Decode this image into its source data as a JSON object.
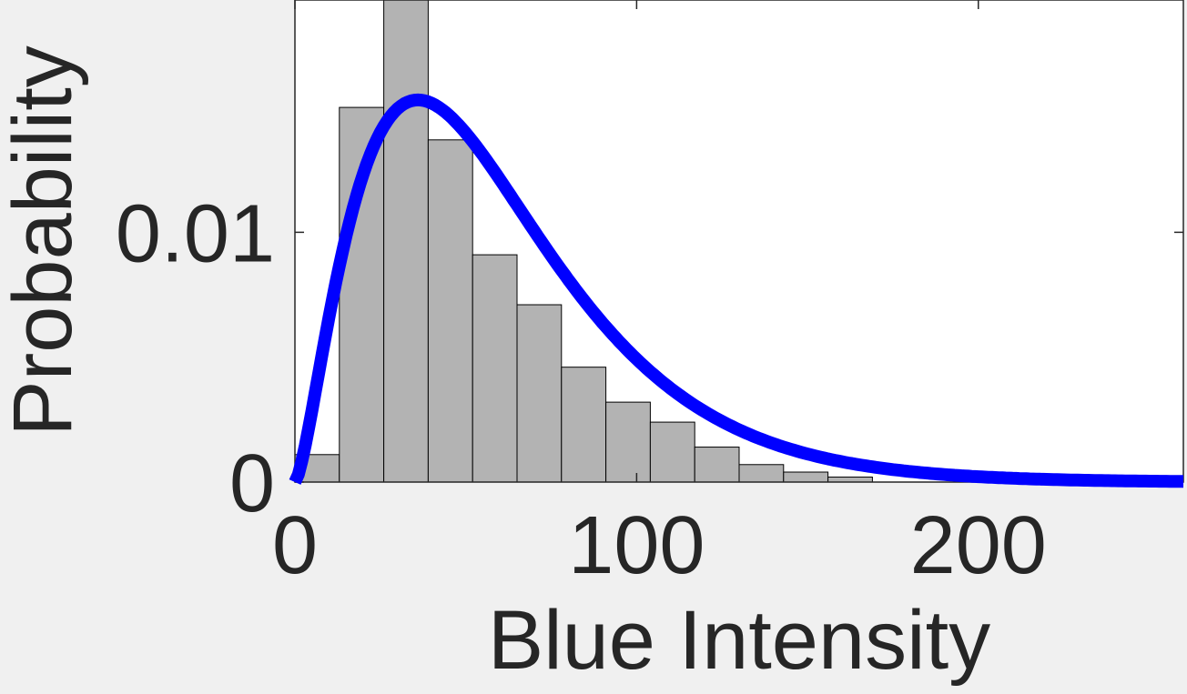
{
  "chart_data": {
    "type": "bar",
    "title": "",
    "xlabel": "Blue Intensity",
    "ylabel": "Probability",
    "xlim": [
      0,
      260
    ],
    "ylim": [
      0,
      0.0193
    ],
    "xticks": [
      0,
      100,
      200
    ],
    "yticks": [
      0,
      0.01
    ],
    "xtick_labels": [
      "0",
      "100",
      "200"
    ],
    "ytick_labels": [
      "0",
      "0.01"
    ],
    "grid": false,
    "bin_width": 13,
    "bin_edges": [
      0,
      13,
      26,
      39,
      52,
      65,
      78,
      91,
      104,
      117,
      130,
      143,
      156,
      169
    ],
    "bar_values": [
      0.0011,
      0.015,
      0.0196,
      0.0137,
      0.0091,
      0.0071,
      0.0046,
      0.0032,
      0.0024,
      0.0014,
      0.0007,
      0.0004,
      0.0002
    ],
    "bar_color": "#b3b3b3",
    "curve": {
      "type": "line",
      "color": "#0000ff",
      "shape_k": 2.5,
      "scale_theta": 24,
      "peak_x": 36,
      "peak_y": 0.0153
    }
  }
}
